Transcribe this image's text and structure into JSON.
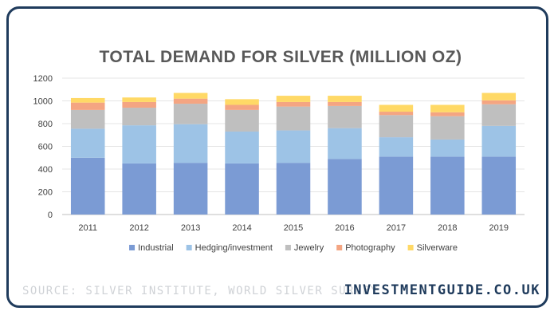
{
  "chart_data": {
    "type": "bar",
    "stacked": true,
    "title": "TOTAL DEMAND FOR SILVER (MILLION OZ)",
    "xlabel": "",
    "ylabel": "",
    "categories": [
      "2011",
      "2012",
      "2013",
      "2014",
      "2015",
      "2016",
      "2017",
      "2018",
      "2019"
    ],
    "ylim": [
      0,
      1200
    ],
    "yticks": [
      0,
      200,
      400,
      600,
      800,
      1000,
      1200
    ],
    "grid": true,
    "legend_position": "bottom",
    "series": [
      {
        "name": "Industrial",
        "color": "#7b9bd4",
        "values": [
          500,
          450,
          455,
          450,
          455,
          490,
          510,
          510,
          510
        ]
      },
      {
        "name": "Hedging/investment",
        "color": "#9dc3e6",
        "values": [
          255,
          335,
          340,
          280,
          285,
          270,
          170,
          150,
          270
        ]
      },
      {
        "name": "Jewelry",
        "color": "#bfbfbf",
        "values": [
          165,
          155,
          180,
          190,
          210,
          195,
          195,
          205,
          190
        ]
      },
      {
        "name": "Photography",
        "color": "#f4a582",
        "values": [
          65,
          50,
          45,
          45,
          40,
          35,
          30,
          35,
          35
        ]
      },
      {
        "name": "Silverware",
        "color": "#ffd966",
        "values": [
          40,
          40,
          50,
          50,
          55,
          55,
          60,
          65,
          65
        ]
      }
    ]
  },
  "footer": {
    "source": "SOURCE: SILVER INSTITUTE, WORLD SILVER SURVEY",
    "brand": "INVESTMENTGUIDE.CO.UK"
  }
}
